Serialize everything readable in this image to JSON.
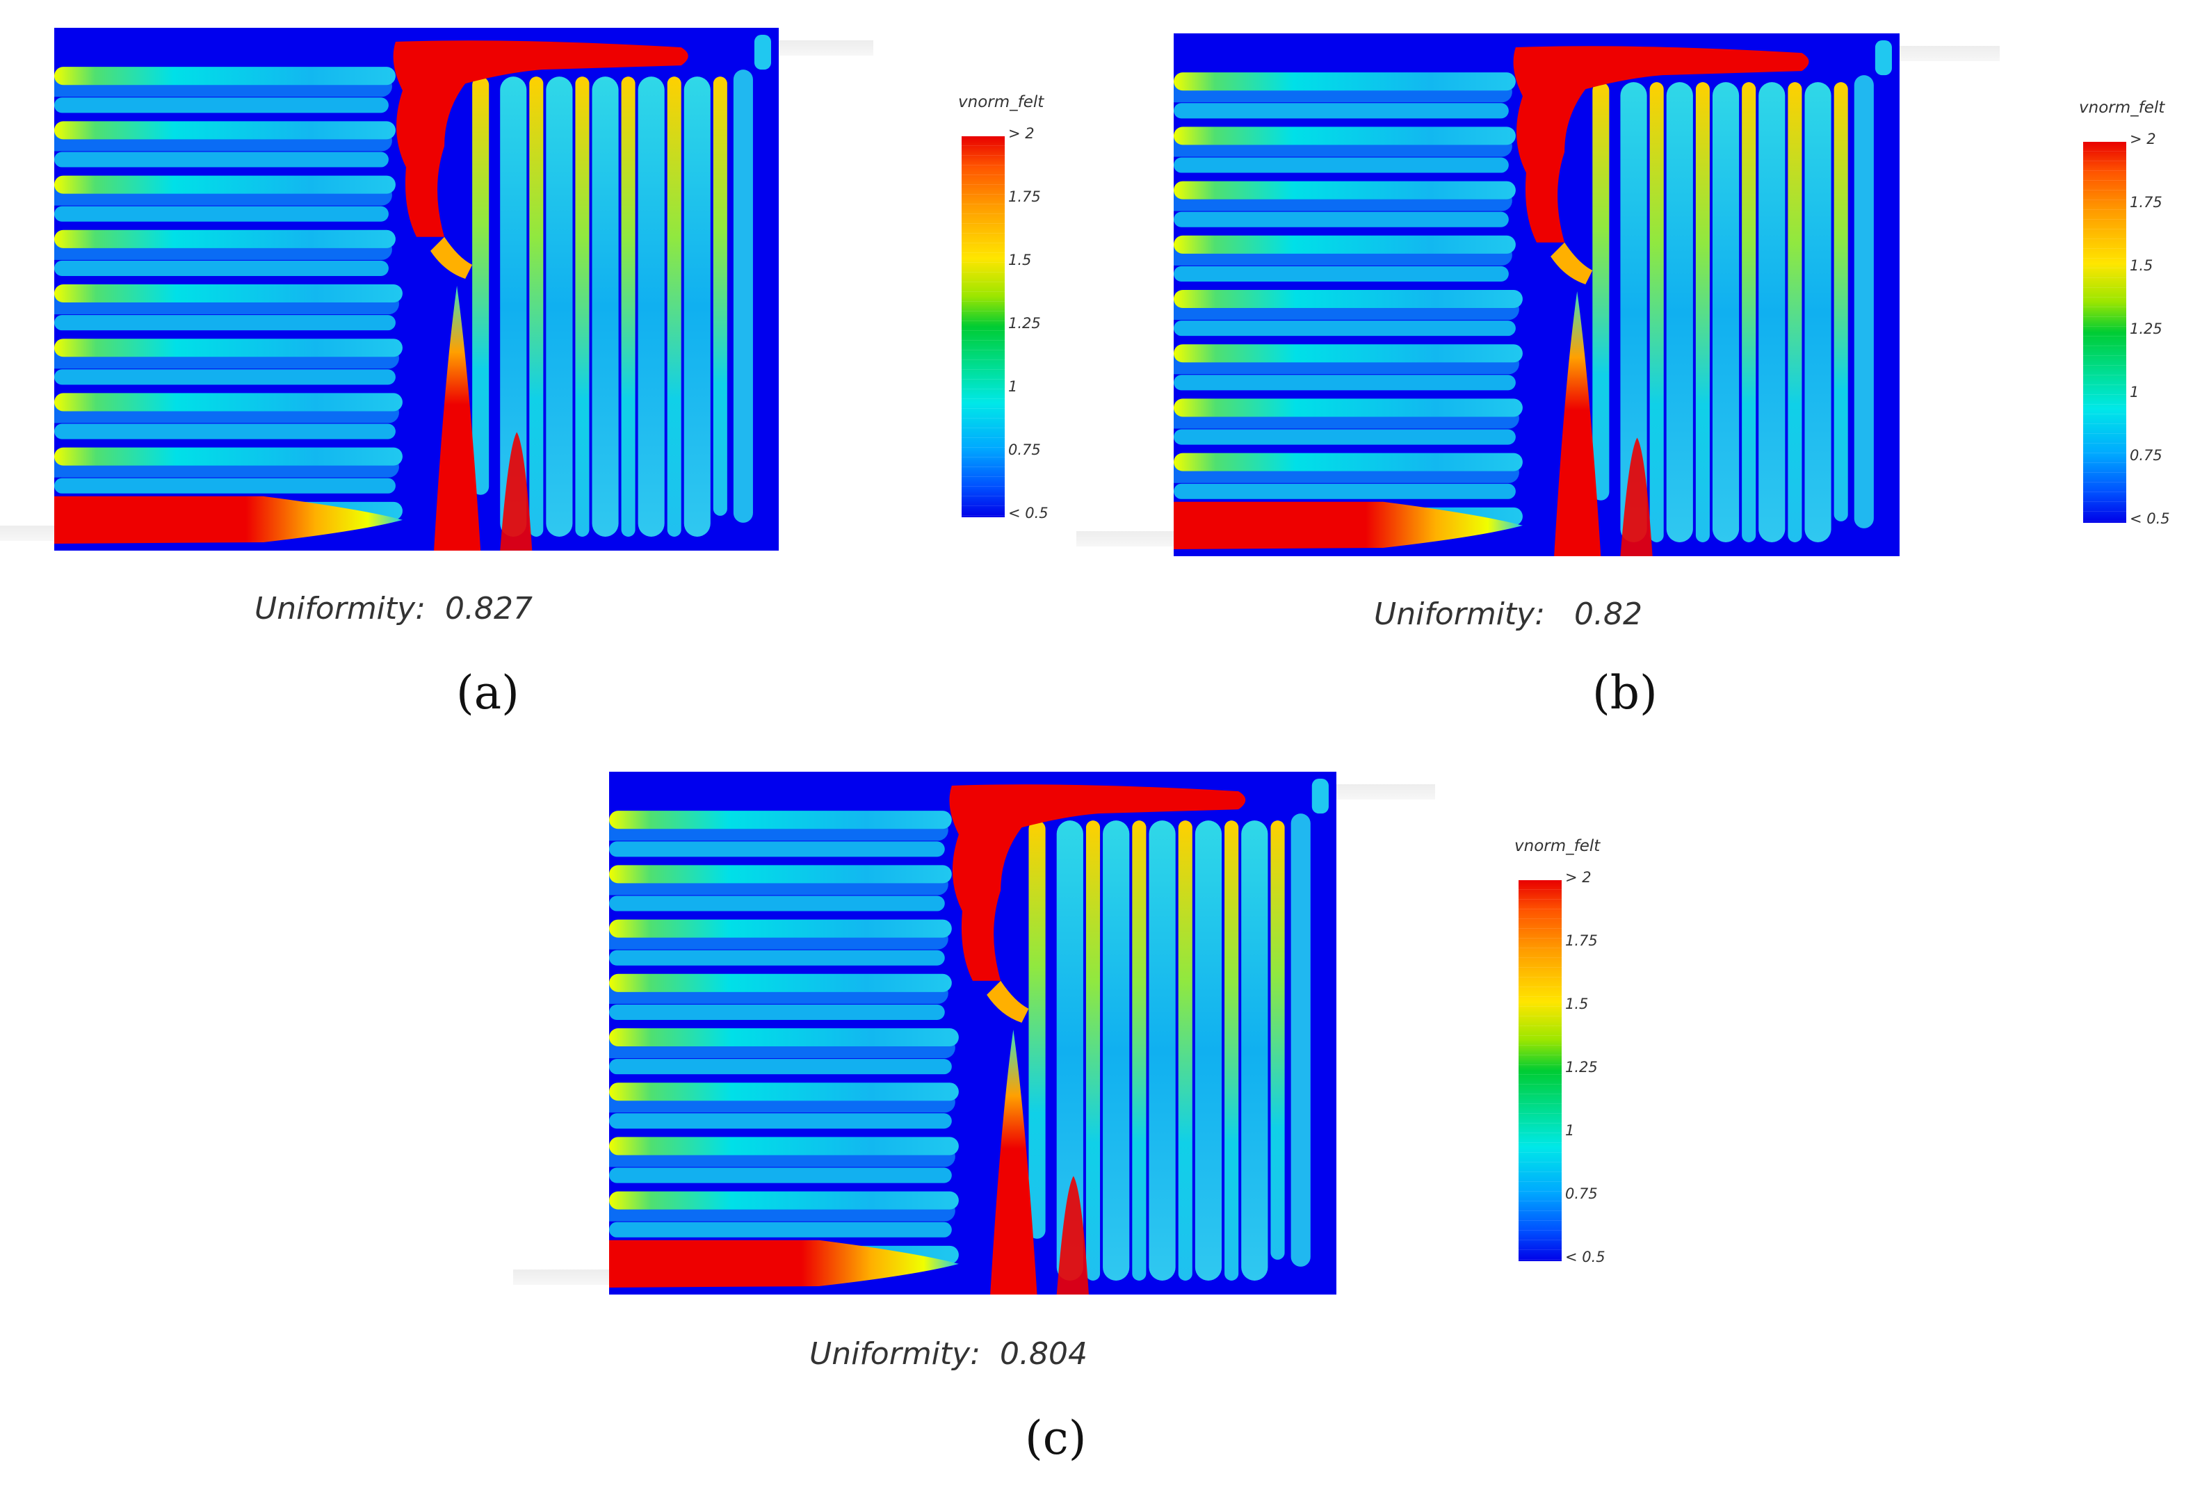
{
  "colorbar": {
    "title": "vnorm_felt",
    "ticks": [
      "> 2",
      "1.75",
      "1.5",
      "1.25",
      "1",
      "0.75",
      "< 0.5"
    ],
    "colors": [
      "#e80000",
      "#ff9a00",
      "#ffe600",
      "#00cc33",
      "#00e8e8",
      "#0050ff",
      "#0000e8"
    ]
  },
  "panels": [
    {
      "label": "(a)",
      "uniformity_label": "Uniformity:",
      "uniformity_value": "0.827"
    },
    {
      "label": "(b)",
      "uniformity_label": "Uniformity:",
      "uniformity_value": "0.82"
    },
    {
      "label": "(c)",
      "uniformity_label": "Uniformity:",
      "uniformity_value": "0.804"
    }
  ],
  "colors": {
    "background": "#0000ee",
    "hot": "#ee0000",
    "channel": "#19c8ee"
  }
}
